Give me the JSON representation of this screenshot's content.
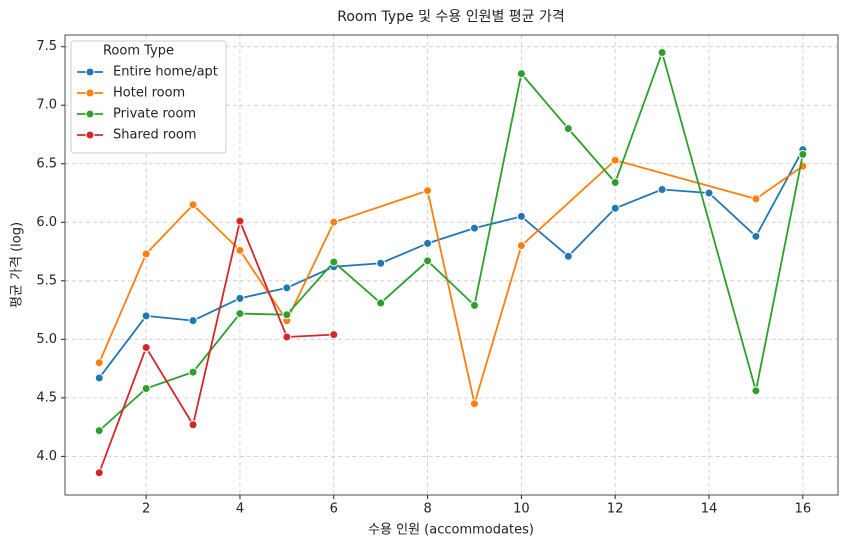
{
  "chart_data": {
    "type": "line",
    "title": "Room Type 및 수용 인원별 평균 가격",
    "x_label": "수용 인원 (accommodates)",
    "y_label": "평균 가격 (log)",
    "legend_title": "Room Type",
    "legend_position": "upper left",
    "grid": true,
    "xlim": [
      0.27,
      16.75
    ],
    "ylim": [
      3.67,
      7.6
    ],
    "xticks": [
      2,
      4,
      6,
      8,
      10,
      12,
      14,
      16
    ],
    "yticks": [
      {
        "value": 4,
        "label": "4.0"
      },
      {
        "value": 4.5,
        "label": "4.5"
      },
      {
        "value": 5,
        "label": "5.0"
      },
      {
        "value": 5.5,
        "label": "5.5"
      },
      {
        "value": 6,
        "label": "6.0"
      },
      {
        "value": 6.5,
        "label": "6.5"
      },
      {
        "value": 7,
        "label": "7.0"
      },
      {
        "value": 7.5,
        "label": "7.5"
      }
    ],
    "series": [
      {
        "name": "Entire home/apt",
        "color": "#1f77b4",
        "x": [
          1,
          2,
          3,
          4,
          5,
          6,
          7,
          8,
          9,
          10,
          11,
          12,
          13,
          14,
          15,
          16
        ],
        "values": [
          4.67,
          5.2,
          5.16,
          5.35,
          5.44,
          5.62,
          5.65,
          5.82,
          5.95,
          6.05,
          5.71,
          6.12,
          6.28,
          6.25,
          5.88,
          6.62
        ]
      },
      {
        "name": "Hotel room",
        "color": "#ff7f0e",
        "x": [
          1,
          2,
          3,
          4,
          5,
          6,
          8,
          9,
          10,
          12,
          15,
          16
        ],
        "values": [
          4.8,
          5.73,
          6.15,
          5.76,
          5.16,
          6.0,
          6.27,
          4.45,
          5.8,
          6.53,
          6.2,
          6.48
        ]
      },
      {
        "name": "Private room",
        "color": "#2ca02c",
        "x": [
          1,
          2,
          3,
          4,
          5,
          6,
          7,
          8,
          9,
          10,
          11,
          12,
          13,
          15,
          16
        ],
        "values": [
          4.22,
          4.58,
          4.72,
          5.22,
          5.21,
          5.66,
          5.31,
          5.67,
          5.29,
          7.27,
          6.8,
          6.34,
          7.45,
          4.56,
          6.58
        ]
      },
      {
        "name": "Shared room",
        "color": "#d62728",
        "x": [
          1,
          2,
          3,
          4,
          5,
          6
        ],
        "values": [
          3.86,
          4.93,
          4.27,
          6.01,
          5.02,
          5.04
        ]
      }
    ]
  }
}
